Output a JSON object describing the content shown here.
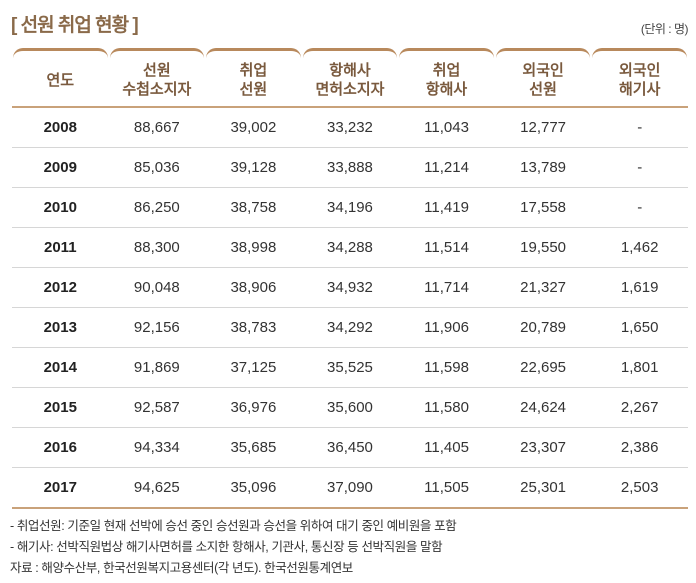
{
  "title": "[ 선원 취업 현황 ]",
  "unit": "(단위 : 명)",
  "colors": {
    "accent": "#b8895c",
    "header_text": "#7a5a3e"
  },
  "headers": [
    [
      "연도",
      ""
    ],
    [
      "선원",
      "수첩소지자"
    ],
    [
      "취업",
      "선원"
    ],
    [
      "항해사",
      "면허소지자"
    ],
    [
      "취업",
      "항해사"
    ],
    [
      "외국인",
      "선원"
    ],
    [
      "외국인",
      "해기사"
    ]
  ],
  "rows": [
    [
      "2008",
      "88,667",
      "39,002",
      "33,232",
      "11,043",
      "12,777",
      "-"
    ],
    [
      "2009",
      "85,036",
      "39,128",
      "33,888",
      "11,214",
      "13,789",
      "-"
    ],
    [
      "2010",
      "86,250",
      "38,758",
      "34,196",
      "11,419",
      "17,558",
      "-"
    ],
    [
      "2011",
      "88,300",
      "38,998",
      "34,288",
      "11,514",
      "19,550",
      "1,462"
    ],
    [
      "2012",
      "90,048",
      "38,906",
      "34,932",
      "11,714",
      "21,327",
      "1,619"
    ],
    [
      "2013",
      "92,156",
      "38,783",
      "34,292",
      "11,906",
      "20,789",
      "1,650"
    ],
    [
      "2014",
      "91,869",
      "37,125",
      "35,525",
      "11,598",
      "22,695",
      "1,801"
    ],
    [
      "2015",
      "92,587",
      "36,976",
      "35,600",
      "11,580",
      "24,624",
      "2,267"
    ],
    [
      "2016",
      "94,334",
      "35,685",
      "36,450",
      "11,405",
      "23,307",
      "2,386"
    ],
    [
      "2017",
      "94,625",
      "35,096",
      "37,090",
      "11,505",
      "25,301",
      "2,503"
    ]
  ],
  "notes": [
    "- 취업선원: 기준일 현재 선박에 승선 중인 승선원과 승선을 위하여 대기 중인 예비원을 포함",
    "- 해기사: 선박직원법상 해기사면허를 소지한 항해사, 기관사, 통신장 등 선박직원을 말함",
    "자료 : 해양수산부, 한국선원복지고용센터(각 년도). 한국선원통계연보"
  ]
}
